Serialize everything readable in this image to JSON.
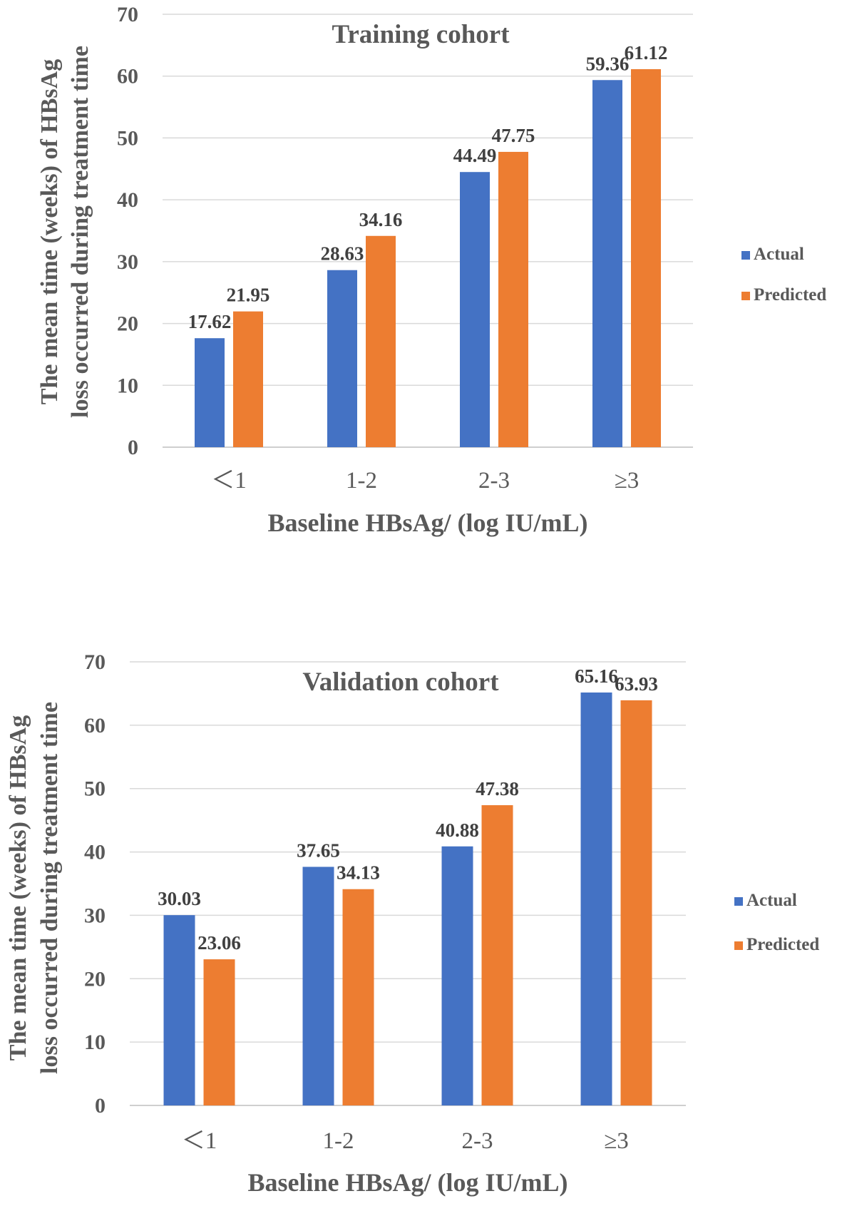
{
  "colors": {
    "actual": "#4472c4",
    "predicted": "#ed7d31"
  },
  "chart_data": [
    {
      "type": "bar",
      "title": "Training cohort",
      "xlabel": "Baseline HBsAg/ (log IU/mL)",
      "ylabel_lines": [
        "The mean time (weeks) of HBsAg",
        "loss occurred during treatment time"
      ],
      "categories": [
        "＜1",
        "1-2",
        "2-3",
        "≥3"
      ],
      "ylim": [
        0,
        70
      ],
      "yticks": [
        "0",
        "10",
        "20",
        "30",
        "40",
        "50",
        "60",
        "70"
      ],
      "series": [
        {
          "name": "Actual",
          "values": [
            17.62,
            28.63,
            44.49,
            59.36
          ],
          "labels": [
            "17.62",
            "28.63",
            "44.49",
            "59.36"
          ]
        },
        {
          "name": "Predicted",
          "values": [
            21.95,
            34.16,
            47.75,
            61.12
          ],
          "labels": [
            "21.95",
            "34.16",
            "47.75",
            "61.12"
          ]
        }
      ],
      "legend": "right",
      "grid": true
    },
    {
      "type": "bar",
      "title": "Validation cohort",
      "xlabel": "Baseline HBsAg/ (log IU/mL)",
      "ylabel_lines": [
        "The mean time (weeks) of HBsAg",
        "loss occurred during treatment time"
      ],
      "categories": [
        "＜1",
        "1-2",
        "2-3",
        "≥3"
      ],
      "ylim": [
        0,
        70
      ],
      "yticks": [
        "0",
        "10",
        "20",
        "30",
        "40",
        "50",
        "60",
        "70"
      ],
      "series": [
        {
          "name": "Actual",
          "values": [
            30.03,
            37.65,
            40.88,
            65.16
          ],
          "labels": [
            "30.03",
            "37.65",
            "40.88",
            "65.16"
          ]
        },
        {
          "name": "Predicted",
          "values": [
            23.06,
            34.13,
            47.38,
            63.93
          ],
          "labels": [
            "23.06",
            "34.13",
            "47.38",
            "63.93"
          ]
        }
      ],
      "legend": "right",
      "grid": true
    }
  ]
}
